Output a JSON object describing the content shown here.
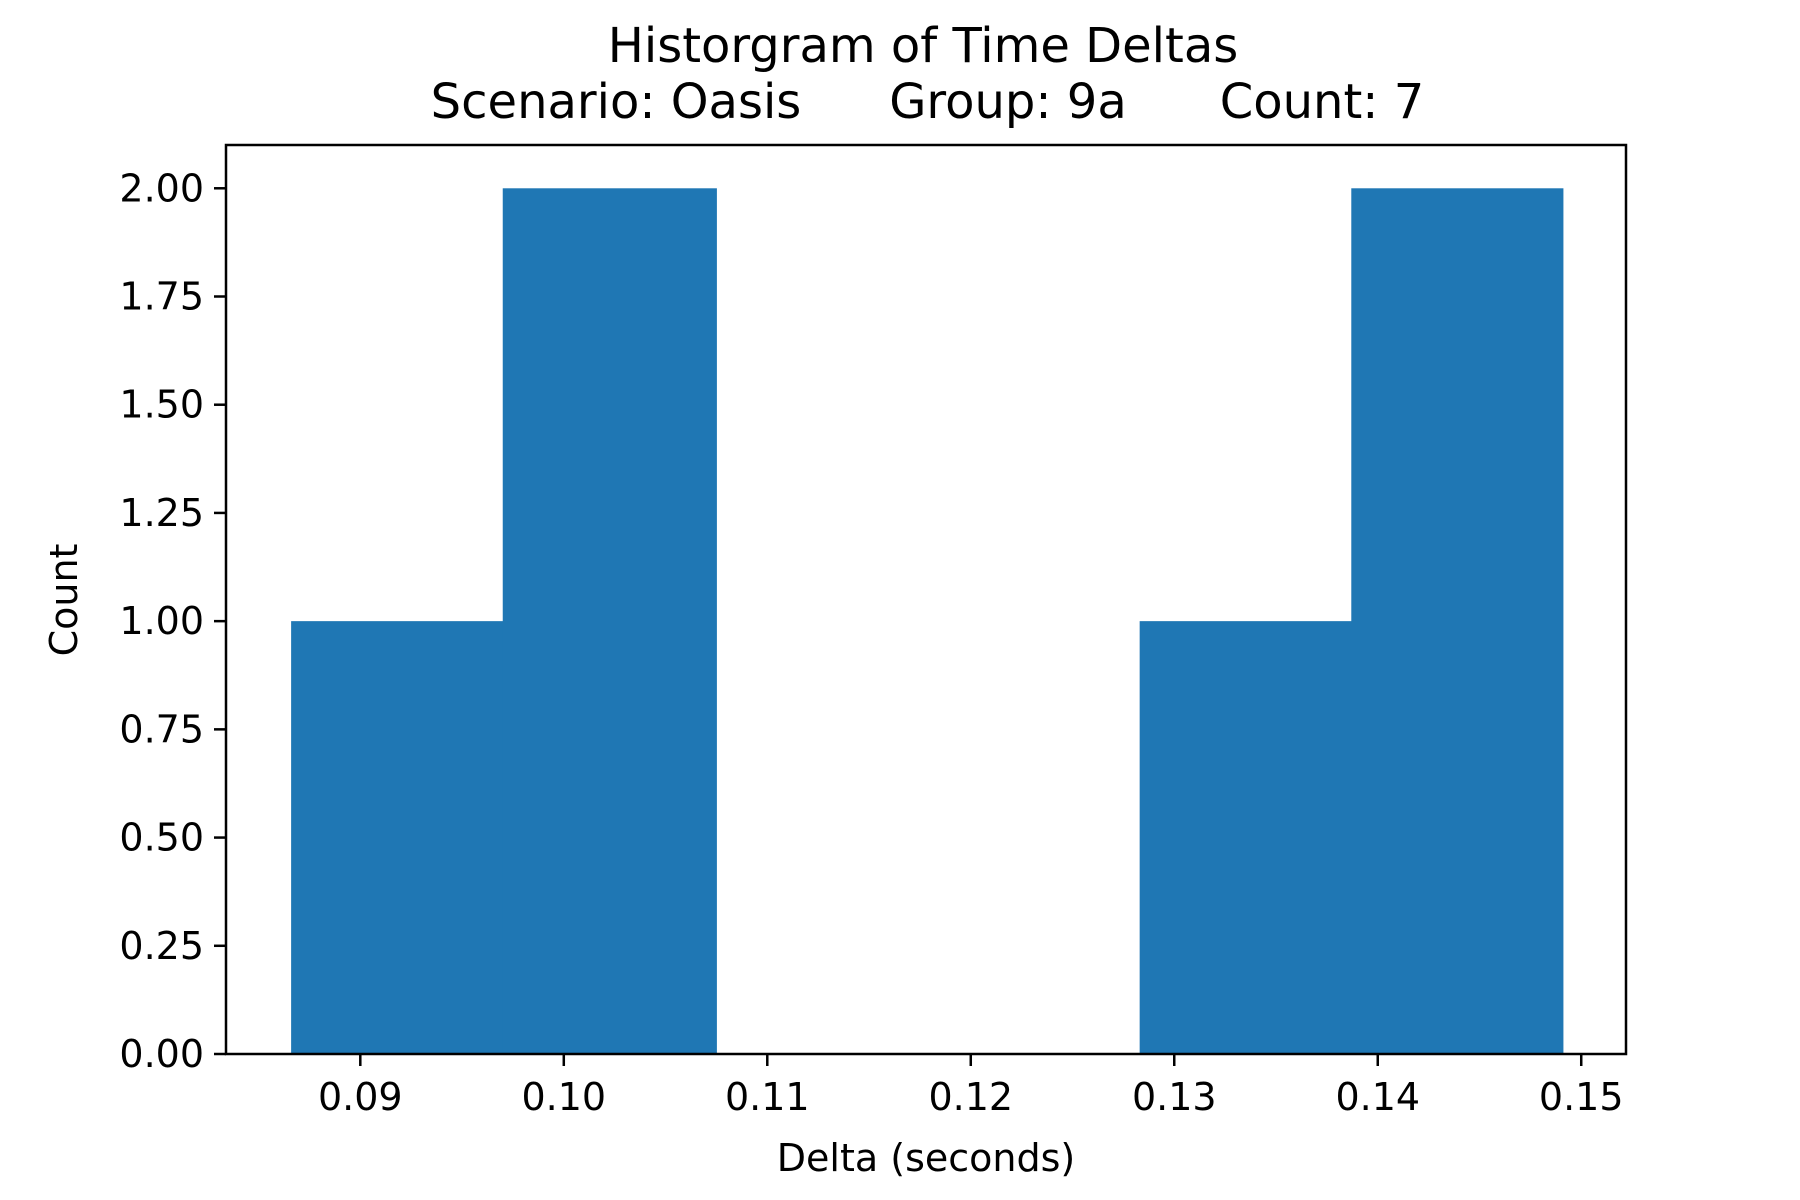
{
  "chart_data": {
    "type": "bar",
    "title": "Historgram of Time Deltas",
    "subtitle": {
      "scenario": "Scenario: Oasis",
      "group": "Group: 9a",
      "count": "Count: 7"
    },
    "xlabel": "Delta (seconds)",
    "ylabel": "Count",
    "xlim": [
      0.0834,
      0.1522
    ],
    "ylim": [
      0,
      2.1
    ],
    "x_ticks": [
      0.09,
      0.1,
      0.11,
      0.12,
      0.13,
      0.14,
      0.15
    ],
    "x_tick_labels": [
      "0.09",
      "0.10",
      "0.11",
      "0.12",
      "0.13",
      "0.14",
      "0.15"
    ],
    "y_ticks": [
      0,
      0.25,
      0.5,
      0.75,
      1.0,
      1.25,
      1.5,
      1.75,
      2.0
    ],
    "y_tick_labels": [
      "0.00",
      "0.25",
      "0.50",
      "0.75",
      "1.00",
      "1.25",
      "1.50",
      "1.75",
      "2.00"
    ],
    "bin_edges": [
      0.0866,
      0.097,
      0.1075,
      0.1179,
      0.1283,
      0.1387,
      0.1491
    ],
    "values": [
      1,
      2,
      0,
      0,
      1,
      2
    ],
    "bar_color": "#1f77b4",
    "grid": false,
    "legend": "none"
  }
}
